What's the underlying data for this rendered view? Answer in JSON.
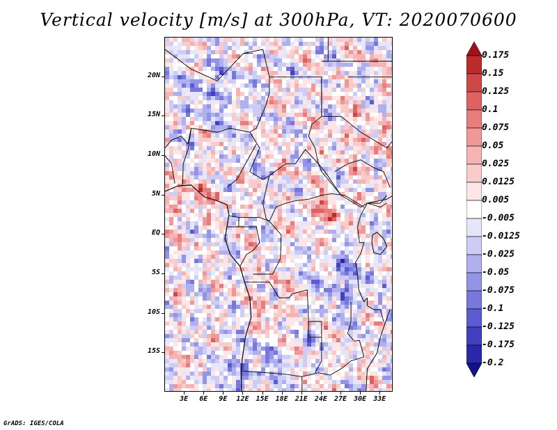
{
  "title": "Vertical velocity [m/s] at 300hPa, VT: 2020070600",
  "footer": "GrADS: IGES/COLA",
  "chart_data": {
    "type": "heatmap",
    "variable": "Vertical velocity",
    "units": "m/s",
    "level": "300hPa",
    "valid_time": "2020070600",
    "lon_range": [
      0,
      35
    ],
    "lat_range": [
      -20,
      25
    ],
    "lat_tick_labels": [
      "20N",
      "15N",
      "10N",
      "5N",
      "EQ",
      "5S",
      "10S",
      "15S"
    ],
    "lat_tick_values": [
      20,
      15,
      10,
      5,
      0,
      -5,
      -10,
      -15
    ],
    "lon_tick_labels": [
      "3E",
      "6E",
      "9E",
      "12E",
      "15E",
      "18E",
      "21E",
      "24E",
      "27E",
      "30E",
      "33E"
    ],
    "lon_tick_values": [
      3,
      6,
      9,
      12,
      15,
      18,
      21,
      24,
      27,
      30,
      33
    ],
    "colorbar_levels": [
      "0.175",
      "0.15",
      "0.125",
      "0.1",
      "0.075",
      "0.05",
      "0.025",
      "0.0125",
      "0.005",
      "-0.005",
      "-0.0125",
      "-0.025",
      "-0.05",
      "-0.075",
      "-0.1",
      "-0.125",
      "-0.175",
      "-0.2"
    ],
    "colorbar_colors": [
      "#a50f15",
      "#bd2a2c",
      "#d04747",
      "#de6262",
      "#e87d7d",
      "#f09898",
      "#f5b3b3",
      "#f9cccc",
      "#fce6e6",
      "#ffffff",
      "#e6e6fb",
      "#ccccf5",
      "#b0b0ee",
      "#9494e6",
      "#7878dc",
      "#5c5cd0",
      "#4040c0",
      "#2828a8",
      "#12128c"
    ]
  }
}
